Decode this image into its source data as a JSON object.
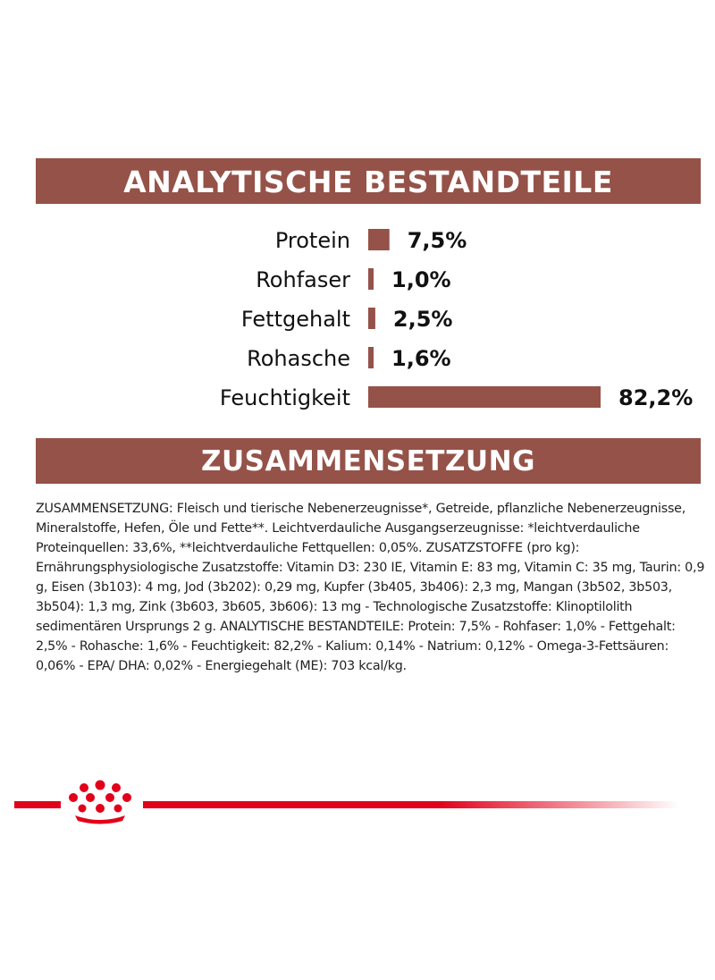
{
  "analytics_heading": "ANALYTISCHE BESTANDTEILE",
  "composition_heading": "ZUSAMMENSETZUNG",
  "composition_text": "ZUSAMMENSETZUNG: Fleisch und tierische Nebenerzeugnisse*, Getreide, pflanzliche Nebenerzeugnisse, Mineralstoffe, Hefen, Öle und Fette**. Leichtverdauliche Ausgangserzeugnisse: *leichtverdauliche Proteinquellen: 33,6%, **leichtverdauliche Fettquellen: 0,05%. ZUSATZSTOFFE (pro kg): Ernährungsphysiologische Zusatzstoffe: Vitamin D3: 230 IE, Vitamin E: 83 mg, Vitamin C: 35 mg, Taurin: 0,9 g, Eisen (3b103): 4 mg, Jod (3b202): 0,29 mg, Kupfer (3b405, 3b406): 2,3 mg, Mangan (3b502, 3b503, 3b504): 1,3 mg, Zink (3b603, 3b605, 3b606): 13 mg - Technologische Zusatzstoffe: Klinoptilolith sedimentären Ursprungs 2 g. ANALYTISCHE BESTANDTEILE: Protein: 7,5% - Rohfaser: 1,0% - Fettgehalt: 2,5% - Rohasche: 1,6% - Feuchtigkeit: 82,2% - Kalium: 0,14% - Natrium: 0,12% - Omega-3-Fettsäuren: 0,06% - EPA/ DHA: 0,02% - Energiegehalt (ME): 703 kcal/kg.",
  "colors": {
    "bar": "#955248",
    "banner": "#955248",
    "brand_red": "#e2001a"
  },
  "logo": "royal-canin-crown",
  "chart_data": {
    "type": "bar",
    "orientation": "horizontal",
    "categories": [
      "Protein",
      "Rohfaser",
      "Fettgehalt",
      "Rohasche",
      "Feuchtigkeit"
    ],
    "values": [
      7.5,
      1.0,
      2.5,
      1.6,
      82.2
    ],
    "value_labels": [
      "7,5%",
      "1,0%",
      "2,5%",
      "1,6%",
      "82,2%"
    ],
    "unit": "%",
    "title": "ANALYTISCHE BESTANDTEILE",
    "grid": false,
    "legend": "none"
  }
}
